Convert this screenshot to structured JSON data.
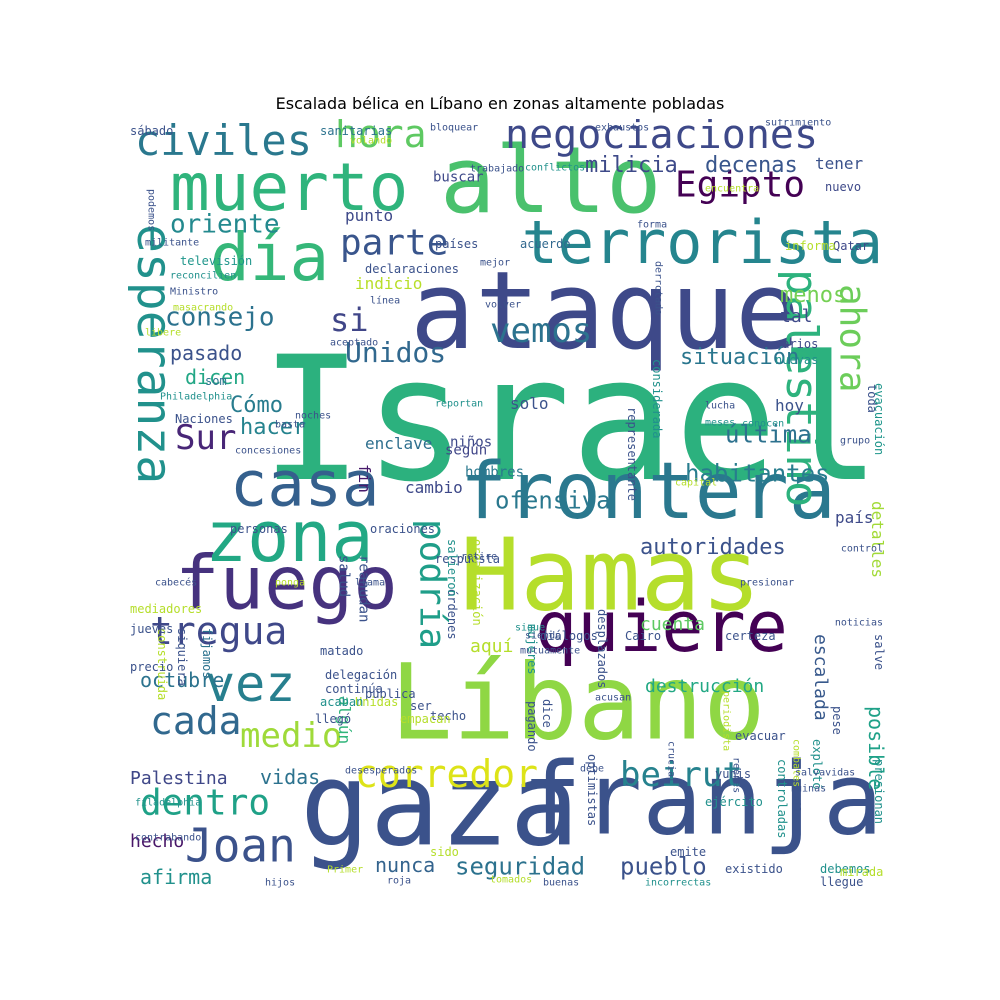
{
  "title": "Escalada bélica en Líbano en zonas altamente pobladas",
  "words": [
    {
      "text": "Israel",
      "color": "#2cb17e"
    },
    {
      "text": "ataque",
      "color": "#3e4989"
    },
    {
      "text": "Hamas",
      "color": "#b5de2b"
    },
    {
      "text": "gaza",
      "color": "#3b528b"
    },
    {
      "text": "franja",
      "color": "#3b528b"
    },
    {
      "text": "alto",
      "color": "#4ac16d"
    },
    {
      "text": "Líbano",
      "color": "#8fd744"
    },
    {
      "text": "muerto",
      "color": "#2fb47c"
    },
    {
      "text": "frontera",
      "color": "#2a788e"
    },
    {
      "text": "quiere",
      "color": "#440154"
    },
    {
      "text": "terrorista",
      "color": "#25858e"
    },
    {
      "text": "fuego",
      "color": "#46327e"
    },
    {
      "text": "zona",
      "color": "#22a884"
    },
    {
      "text": "casa",
      "color": "#35608d"
    },
    {
      "text": "día",
      "color": "#35b779"
    },
    {
      "text": "vez",
      "color": "#277f8e"
    },
    {
      "text": "esperanza",
      "color": "#21918c"
    },
    {
      "text": "negociaciones",
      "color": "#3e4989"
    },
    {
      "text": "civiles",
      "color": "#2a788e"
    },
    {
      "text": "palestino",
      "color": "#2db27d"
    },
    {
      "text": "corredor",
      "color": "#dde318"
    },
    {
      "text": "beirut",
      "color": "#26828e"
    },
    {
      "text": "dentro",
      "color": "#1fa187"
    },
    {
      "text": "Joan",
      "color": "#3b528b"
    },
    {
      "text": "tregua",
      "color": "#3f4889"
    },
    {
      "text": "cada",
      "color": "#31688e"
    },
    {
      "text": "medio",
      "color": "#9fda3a"
    },
    {
      "text": "hora",
      "color": "#5ec962"
    },
    {
      "text": "Egipto",
      "color": "#440154"
    },
    {
      "text": "parte",
      "color": "#39558c"
    },
    {
      "text": "ahora",
      "color": "#6ccd5a"
    },
    {
      "text": "Sur",
      "color": "#482677"
    },
    {
      "text": "podría",
      "color": "#1f9e89"
    },
    {
      "text": "vemos",
      "color": "#2c728e"
    },
    {
      "text": "Unidos",
      "color": "#31688e"
    },
    {
      "text": "consejo",
      "color": "#2c728e"
    },
    {
      "text": "si",
      "color": "#404688"
    },
    {
      "text": "oriente",
      "color": "#23898e"
    },
    {
      "text": "ofensiva",
      "color": "#2a788e"
    },
    {
      "text": "habitantes",
      "color": "#287d8e"
    },
    {
      "text": "autoridades",
      "color": "#3b528b"
    },
    {
      "text": "seguridad",
      "color": "#2c728e"
    },
    {
      "text": "pueblo",
      "color": "#3b528b"
    },
    {
      "text": "milicia",
      "color": "#3e4a89"
    },
    {
      "text": "decenas",
      "color": "#39568c"
    },
    {
      "text": "situación",
      "color": "#2a768e"
    },
    {
      "text": "última",
      "color": "#2c718e"
    },
    {
      "text": "Cómo",
      "color": "#287c8e"
    },
    {
      "text": "hacer",
      "color": "#25838e"
    },
    {
      "text": "dicen",
      "color": "#22a785"
    },
    {
      "text": "pasado",
      "color": "#3b528b"
    },
    {
      "text": "octubre",
      "color": "#2c738e"
    },
    {
      "text": "afirma",
      "color": "#21918c"
    },
    {
      "text": "nunca",
      "color": "#33638d"
    },
    {
      "text": "vidas",
      "color": "#2c728e"
    },
    {
      "text": "Palestina",
      "color": "#3f4788"
    },
    {
      "text": "hecho",
      "color": "#481668"
    },
    {
      "text": "destrucción",
      "color": "#22a884"
    },
    {
      "text": "cuenta",
      "color": "#5ec962"
    },
    {
      "text": "aquí",
      "color": "#b5de2b"
    },
    {
      "text": "detalles",
      "color": "#a2da37"
    },
    {
      "text": "posible",
      "color": "#1fa188"
    },
    {
      "text": "escalada",
      "color": "#38598c"
    },
    {
      "text": "menos",
      "color": "#75d054"
    },
    {
      "text": "tal",
      "color": "#3e4989"
    },
    {
      "text": "tener",
      "color": "#3b528b"
    },
    {
      "text": "punto",
      "color": "#3e4989"
    },
    {
      "text": "indicio",
      "color": "#b8de29"
    },
    {
      "text": "solo",
      "color": "#3b528b"
    },
    {
      "text": "cambio",
      "color": "#3e4989"
    },
    {
      "text": "hoy",
      "color": "#3b528b"
    },
    {
      "text": "país",
      "color": "#3e4a89"
    },
    {
      "text": "algún",
      "color": "#31b57b"
    },
    {
      "text": "fin",
      "color": "#481a6c"
    },
    {
      "text": "enclave",
      "color": "#2e6f8e"
    },
    {
      "text": "niños",
      "color": "#3e4989"
    },
    {
      "text": "según",
      "color": "#404588"
    },
    {
      "text": "hombres",
      "color": "#2a788e"
    },
    {
      "text": "varios",
      "color": "#3e4989"
    },
    {
      "text": "nuevas",
      "color": "#21918c"
    },
    {
      "text": "nuevo",
      "color": "#3e4989"
    },
    {
      "text": "Qatar",
      "color": "#3e4989"
    },
    {
      "text": "informa",
      "color": "#b5de2b"
    },
    {
      "text": "toda",
      "color": "#3b528b"
    },
    {
      "text": "evacuación",
      "color": "#1f968b"
    },
    {
      "text": "sanitarias",
      "color": "#2c728e"
    },
    {
      "text": "buscar",
      "color": "#3e4989"
    },
    {
      "text": "países",
      "color": "#3b528b"
    },
    {
      "text": "acuerdo",
      "color": "#31688e"
    },
    {
      "text": "declaraciones",
      "color": "#3b528b"
    },
    {
      "text": "televisión",
      "color": "#1f968b"
    },
    {
      "text": "sábado",
      "color": "#3b528b"
    },
    {
      "text": "som",
      "color": "#2c728e"
    },
    {
      "text": "Naciones",
      "color": "#3b528b"
    },
    {
      "text": "salud",
      "color": "#3b528b"
    },
    {
      "text": "reanudan",
      "color": "#3b528b"
    },
    {
      "text": "personas",
      "color": "#3b528b"
    },
    {
      "text": "oraciones",
      "color": "#3b528b"
    },
    {
      "text": "construida",
      "color": "#b5de2b"
    },
    {
      "text": "siquiera",
      "color": "#3b528b"
    },
    {
      "text": "fijamos",
      "color": "#2c728e"
    },
    {
      "text": "mediadores",
      "color": "#b5de2b"
    },
    {
      "text": "jueves",
      "color": "#3b528b"
    },
    {
      "text": "precio",
      "color": "#3b528b"
    },
    {
      "text": "respuesta",
      "color": "#3b528b"
    },
    {
      "text": "diálogos",
      "color": "#3b528b"
    },
    {
      "text": "Cairo",
      "color": "#3b528b"
    },
    {
      "text": "certeza",
      "color": "#3b528b"
    },
    {
      "text": "matado",
      "color": "#3b528b"
    },
    {
      "text": "delegación",
      "color": "#3b528b"
    },
    {
      "text": "continúa",
      "color": "#3b528b"
    },
    {
      "text": "pública",
      "color": "#3b528b"
    },
    {
      "text": "Unidas",
      "color": "#b5de2b"
    },
    {
      "text": "dice",
      "color": "#3b528b"
    },
    {
      "text": "acaban",
      "color": "#21918c"
    },
    {
      "text": "llegó",
      "color": "#3b528b"
    },
    {
      "text": "ser",
      "color": "#3b528b"
    },
    {
      "text": "techo",
      "color": "#3b528b"
    },
    {
      "text": "empacan",
      "color": "#b5de2b"
    },
    {
      "text": "pagando",
      "color": "#3b528b"
    },
    {
      "text": "yunis",
      "color": "#3b528b"
    },
    {
      "text": "ejército",
      "color": "#21918c"
    },
    {
      "text": "emite",
      "color": "#3b528b"
    },
    {
      "text": "evacuar",
      "color": "#3b528b"
    },
    {
      "text": "sido",
      "color": "#b5de2b"
    },
    {
      "text": "existido",
      "color": "#3b528b"
    },
    {
      "text": "debemos",
      "color": "#21918c"
    },
    {
      "text": "llegue",
      "color": "#3b528b"
    },
    {
      "text": "mirada",
      "color": "#b5de2b"
    },
    {
      "text": "pese",
      "color": "#3b528b"
    },
    {
      "text": "salve",
      "color": "#3b528b"
    },
    {
      "text": "explotó",
      "color": "#21918c"
    },
    {
      "text": "controladas",
      "color": "#21918c"
    },
    {
      "text": "presionan",
      "color": "#21918c"
    },
    {
      "text": "optimistas",
      "color": "#3b528b"
    },
    {
      "text": "desplazados",
      "color": "#3b528b"
    },
    {
      "text": "mujeres",
      "color": "#21918c"
    },
    {
      "text": "órdenes",
      "color": "#3b528b"
    },
    {
      "text": "representante",
      "color": "#3b528b"
    },
    {
      "text": "considerada",
      "color": "#21918c"
    },
    {
      "text": "salieron",
      "color": "#21918c"
    },
    {
      "text": "organización",
      "color": "#b5de2b"
    },
    {
      "text": "reportan",
      "color": "#21918c"
    },
    {
      "text": "bloquear",
      "color": "#3b528b"
    },
    {
      "text": "exhaustos",
      "color": "#3b528b"
    },
    {
      "text": "sufrimiento",
      "color": "#3b528b"
    },
    {
      "text": "volando",
      "color": "#b5de2b"
    },
    {
      "text": "trabajado",
      "color": "#3b528b"
    },
    {
      "text": "conflictos",
      "color": "#21918c"
    },
    {
      "text": "encuentra",
      "color": "#b5de2b"
    },
    {
      "text": "podemos",
      "color": "#3b528b"
    },
    {
      "text": "militante",
      "color": "#3b528b"
    },
    {
      "text": "forma",
      "color": "#3b528b"
    },
    {
      "text": "derrotado",
      "color": "#3b528b"
    },
    {
      "text": "mejor",
      "color": "#3b528b"
    },
    {
      "text": "reconcilien",
      "color": "#21918c"
    },
    {
      "text": "Ministro",
      "color": "#3b528b"
    },
    {
      "text": "masacrando",
      "color": "#b5de2b"
    },
    {
      "text": "línea",
      "color": "#3b528b"
    },
    {
      "text": "volver",
      "color": "#3b528b"
    },
    {
      "text": "libere",
      "color": "#b5de2b"
    },
    {
      "text": "aceptado",
      "color": "#3b528b"
    },
    {
      "text": "Philadelphia",
      "color": "#21918c"
    },
    {
      "text": "noches",
      "color": "#3b528b"
    },
    {
      "text": "basta",
      "color": "#3b528b"
    },
    {
      "text": "lucha",
      "color": "#3b528b"
    },
    {
      "text": "conocen",
      "color": "#21918c"
    },
    {
      "text": "concesiones",
      "color": "#3b528b"
    },
    {
      "text": "meses",
      "color": "#21918c"
    },
    {
      "text": "grupo",
      "color": "#3b528b"
    },
    {
      "text": "capital",
      "color": "#b5de2b"
    },
    {
      "text": "control",
      "color": "#3b528b"
    },
    {
      "text": "cabecés",
      "color": "#3b528b"
    },
    {
      "text": "ponga",
      "color": "#b5de2b"
    },
    {
      "text": "llama",
      "color": "#3b528b"
    },
    {
      "text": "siendo",
      "color": "#3b528b"
    },
    {
      "text": "sigue",
      "color": "#21918c"
    },
    {
      "text": "presionar",
      "color": "#3b528b"
    },
    {
      "text": "mutuamente",
      "color": "#3b528b"
    },
    {
      "text": "noticias",
      "color": "#3b528b"
    },
    {
      "text": "acusan",
      "color": "#3b528b"
    },
    {
      "text": "periodista",
      "color": "#b5de2b"
    },
    {
      "text": "crucial",
      "color": "#3b528b"
    },
    {
      "text": "combates",
      "color": "#b5de2b"
    },
    {
      "text": "reenes",
      "color": "#3b528b"
    },
    {
      "text": "debe",
      "color": "#3b528b"
    },
    {
      "text": "desesperados",
      "color": "#3b528b"
    },
    {
      "text": "salvavidas",
      "color": "#3b528b"
    },
    {
      "text": "ruinas",
      "color": "#3b528b"
    },
    {
      "text": "miles",
      "color": "#3b528b"
    },
    {
      "text": "filadelphia",
      "color": "#21918c"
    },
    {
      "text": "contrabando",
      "color": "#3b528b"
    },
    {
      "text": "Primer",
      "color": "#b5de2b"
    },
    {
      "text": "roja",
      "color": "#3b528b"
    },
    {
      "text": "hijos",
      "color": "#3b528b"
    },
    {
      "text": "tomados",
      "color": "#b5de2b"
    },
    {
      "text": "buenas",
      "color": "#3b528b"
    },
    {
      "text": "incorrectas",
      "color": "#21918c"
    },
    {
      "text": "retire",
      "color": "#3b528b"
    }
  ]
}
